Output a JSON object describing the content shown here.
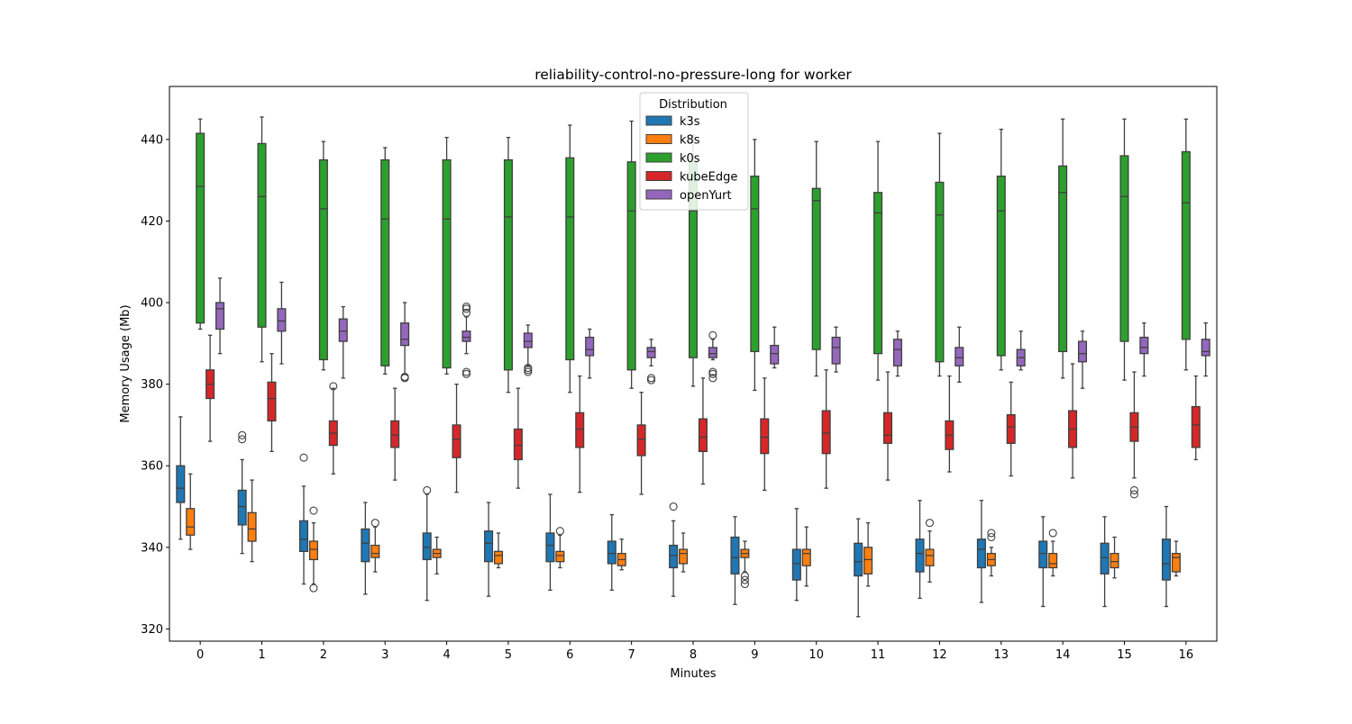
{
  "chart_data": {
    "type": "box",
    "title": "reliability-control-no-pressure-long for worker",
    "xlabel": "Minutes",
    "ylabel": "Memory Usage (Mb)",
    "ylim": [
      317,
      453
    ],
    "yticks": [
      320,
      340,
      360,
      380,
      400,
      420,
      440
    ],
    "grid": false,
    "legend": {
      "title": "Distribution",
      "placement": "top-center"
    },
    "categories": [
      "0",
      "1",
      "2",
      "3",
      "4",
      "5",
      "6",
      "7",
      "8",
      "9",
      "10",
      "11",
      "12",
      "13",
      "14",
      "15",
      "16"
    ],
    "series": [
      {
        "name": "k3s",
        "color": "#1f77b4",
        "boxes": [
          {
            "whislo": 342,
            "q1": 351,
            "med": 354.5,
            "q3": 360,
            "whishi": 372,
            "fliers": []
          },
          {
            "whislo": 338.5,
            "q1": 345.5,
            "med": 350,
            "q3": 354,
            "whishi": 361.5,
            "fliers": [
              366.5,
              367.5
            ]
          },
          {
            "whislo": 331,
            "q1": 339,
            "med": 342,
            "q3": 346.5,
            "whishi": 355,
            "fliers": [
              362
            ]
          },
          {
            "whislo": 328.5,
            "q1": 336.5,
            "med": 341,
            "q3": 344.5,
            "whishi": 351,
            "fliers": []
          },
          {
            "whislo": 327,
            "q1": 337,
            "med": 340,
            "q3": 343.5,
            "whishi": 353,
            "fliers": [
              354
            ]
          },
          {
            "whislo": 328,
            "q1": 336.5,
            "med": 341,
            "q3": 344,
            "whishi": 351,
            "fliers": []
          },
          {
            "whislo": 329.5,
            "q1": 336.5,
            "med": 340.5,
            "q3": 343.5,
            "whishi": 353,
            "fliers": []
          },
          {
            "whislo": 329.5,
            "q1": 336,
            "med": 338.5,
            "q3": 341.5,
            "whishi": 348,
            "fliers": []
          },
          {
            "whislo": 328,
            "q1": 335,
            "med": 338,
            "q3": 340.5,
            "whishi": 346.5,
            "fliers": [
              350
            ]
          },
          {
            "whislo": 326,
            "q1": 333.5,
            "med": 337.5,
            "q3": 342.5,
            "whishi": 347.5,
            "fliers": []
          },
          {
            "whislo": 327,
            "q1": 332,
            "med": 336,
            "q3": 339.5,
            "whishi": 349.5,
            "fliers": []
          },
          {
            "whislo": 323,
            "q1": 333,
            "med": 336.5,
            "q3": 341,
            "whishi": 347,
            "fliers": []
          },
          {
            "whislo": 327.5,
            "q1": 334,
            "med": 338.5,
            "q3": 342,
            "whishi": 351.5,
            "fliers": []
          },
          {
            "whislo": 326.5,
            "q1": 335,
            "med": 339.5,
            "q3": 342,
            "whishi": 351.5,
            "fliers": []
          },
          {
            "whislo": 325.5,
            "q1": 335,
            "med": 338.5,
            "q3": 341.5,
            "whishi": 347.5,
            "fliers": []
          },
          {
            "whislo": 325.5,
            "q1": 333.5,
            "med": 337.5,
            "q3": 341,
            "whishi": 347.5,
            "fliers": []
          },
          {
            "whislo": 325.5,
            "q1": 332,
            "med": 336,
            "q3": 342,
            "whishi": 350,
            "fliers": []
          }
        ]
      },
      {
        "name": "k8s",
        "color": "#ff7f0e",
        "boxes": [
          {
            "whislo": 339.5,
            "q1": 343,
            "med": 345,
            "q3": 349.5,
            "whishi": 358,
            "fliers": []
          },
          {
            "whislo": 336.5,
            "q1": 341.5,
            "med": 344.5,
            "q3": 348.5,
            "whishi": 356.5,
            "fliers": []
          },
          {
            "whislo": 331,
            "q1": 337,
            "med": 339.5,
            "q3": 341.5,
            "whishi": 346,
            "fliers": [
              330,
              349
            ]
          },
          {
            "whislo": 334,
            "q1": 337.5,
            "med": 338.5,
            "q3": 340.5,
            "whishi": 345,
            "fliers": [
              346
            ]
          },
          {
            "whislo": 333.5,
            "q1": 337.5,
            "med": 338.5,
            "q3": 339.5,
            "whishi": 342.5,
            "fliers": []
          },
          {
            "whislo": 335,
            "q1": 336,
            "med": 338,
            "q3": 339,
            "whishi": 343.5,
            "fliers": []
          },
          {
            "whislo": 335,
            "q1": 336.5,
            "med": 338,
            "q3": 339,
            "whishi": 343,
            "fliers": [
              344
            ]
          },
          {
            "whislo": 334.5,
            "q1": 335.5,
            "med": 337,
            "q3": 338.5,
            "whishi": 342,
            "fliers": []
          },
          {
            "whislo": 334,
            "q1": 336,
            "med": 338.5,
            "q3": 339.5,
            "whishi": 343.5,
            "fliers": []
          },
          {
            "whislo": 334,
            "q1": 337.5,
            "med": 338.5,
            "q3": 339.5,
            "whishi": 341.5,
            "fliers": [
              331,
              332,
              333
            ]
          },
          {
            "whislo": 330.5,
            "q1": 335.5,
            "med": 338.5,
            "q3": 339.5,
            "whishi": 345,
            "fliers": []
          },
          {
            "whislo": 330.5,
            "q1": 333.5,
            "med": 337,
            "q3": 340,
            "whishi": 346,
            "fliers": []
          },
          {
            "whislo": 331.5,
            "q1": 335.5,
            "med": 338,
            "q3": 339.5,
            "whishi": 344,
            "fliers": [
              346
            ]
          },
          {
            "whislo": 333,
            "q1": 335.5,
            "med": 337,
            "q3": 338.5,
            "whishi": 340,
            "fliers": [
              342.5,
              343.5
            ]
          },
          {
            "whislo": 333,
            "q1": 335,
            "med": 336,
            "q3": 338.5,
            "whishi": 341.5,
            "fliers": [
              343.5
            ]
          },
          {
            "whislo": 332.5,
            "q1": 335,
            "med": 336.5,
            "q3": 338.5,
            "whishi": 342.5,
            "fliers": []
          },
          {
            "whislo": 333,
            "q1": 334,
            "med": 337.5,
            "q3": 338.5,
            "whishi": 341.5,
            "fliers": []
          }
        ]
      },
      {
        "name": "k0s",
        "color": "#2ca02c",
        "boxes": [
          {
            "whislo": 393.5,
            "q1": 395,
            "med": 428.5,
            "q3": 441.5,
            "whishi": 445,
            "fliers": []
          },
          {
            "whislo": 385.5,
            "q1": 394,
            "med": 426,
            "q3": 439,
            "whishi": 445.5,
            "fliers": []
          },
          {
            "whislo": 383.5,
            "q1": 386,
            "med": 423,
            "q3": 435,
            "whishi": 439.5,
            "fliers": []
          },
          {
            "whislo": 382.5,
            "q1": 384.5,
            "med": 420.5,
            "q3": 435,
            "whishi": 438,
            "fliers": []
          },
          {
            "whislo": 382.5,
            "q1": 384,
            "med": 420.5,
            "q3": 435,
            "whishi": 440.5,
            "fliers": []
          },
          {
            "whislo": 378,
            "q1": 383.5,
            "med": 421,
            "q3": 435,
            "whishi": 440.5,
            "fliers": []
          },
          {
            "whislo": 378,
            "q1": 386,
            "med": 421,
            "q3": 435.5,
            "whishi": 443.5,
            "fliers": []
          },
          {
            "whislo": 379,
            "q1": 383.5,
            "med": 422.5,
            "q3": 434.5,
            "whishi": 444.5,
            "fliers": []
          },
          {
            "whislo": 379.5,
            "q1": 386.5,
            "med": 422.5,
            "q3": 434.5,
            "whishi": 441,
            "fliers": []
          },
          {
            "whislo": 378.5,
            "q1": 388,
            "med": 423,
            "q3": 431,
            "whishi": 440,
            "fliers": []
          },
          {
            "whislo": 382,
            "q1": 388.5,
            "med": 425,
            "q3": 428,
            "whishi": 439.5,
            "fliers": []
          },
          {
            "whislo": 381,
            "q1": 387.5,
            "med": 422,
            "q3": 427,
            "whishi": 439.5,
            "fliers": []
          },
          {
            "whislo": 382,
            "q1": 385.5,
            "med": 421.5,
            "q3": 429.5,
            "whishi": 441.5,
            "fliers": []
          },
          {
            "whislo": 383.5,
            "q1": 387,
            "med": 422.5,
            "q3": 431,
            "whishi": 442.5,
            "fliers": []
          },
          {
            "whislo": 381.5,
            "q1": 388,
            "med": 427,
            "q3": 433.5,
            "whishi": 445,
            "fliers": []
          },
          {
            "whislo": 381,
            "q1": 390.5,
            "med": 426,
            "q3": 436,
            "whishi": 445,
            "fliers": []
          },
          {
            "whislo": 383.5,
            "q1": 391,
            "med": 424.5,
            "q3": 437,
            "whishi": 445,
            "fliers": []
          }
        ]
      },
      {
        "name": "kubeEdge",
        "color": "#d62728",
        "boxes": [
          {
            "whislo": 366,
            "q1": 376.5,
            "med": 380,
            "q3": 383.5,
            "whishi": 392,
            "fliers": []
          },
          {
            "whislo": 363.5,
            "q1": 371,
            "med": 376.5,
            "q3": 380.5,
            "whishi": 387.5,
            "fliers": []
          },
          {
            "whislo": 358,
            "q1": 365,
            "med": 368,
            "q3": 371,
            "whishi": 379,
            "fliers": [
              379.5
            ]
          },
          {
            "whislo": 356.5,
            "q1": 364.5,
            "med": 367.5,
            "q3": 371,
            "whishi": 379,
            "fliers": []
          },
          {
            "whislo": 353.5,
            "q1": 362,
            "med": 366.5,
            "q3": 370,
            "whishi": 380,
            "fliers": []
          },
          {
            "whislo": 354.5,
            "q1": 361.5,
            "med": 365,
            "q3": 369,
            "whishi": 379,
            "fliers": []
          },
          {
            "whislo": 353.5,
            "q1": 364.5,
            "med": 369,
            "q3": 373,
            "whishi": 382,
            "fliers": []
          },
          {
            "whislo": 353,
            "q1": 362.5,
            "med": 366.5,
            "q3": 370,
            "whishi": 378,
            "fliers": []
          },
          {
            "whislo": 355.5,
            "q1": 363.5,
            "med": 367,
            "q3": 371.5,
            "whishi": 381.5,
            "fliers": []
          },
          {
            "whislo": 354,
            "q1": 363,
            "med": 367,
            "q3": 371.5,
            "whishi": 381.5,
            "fliers": []
          },
          {
            "whislo": 354.5,
            "q1": 363,
            "med": 368,
            "q3": 373.5,
            "whishi": 383.5,
            "fliers": []
          },
          {
            "whislo": 356.5,
            "q1": 365.5,
            "med": 367.5,
            "q3": 373,
            "whishi": 383,
            "fliers": []
          },
          {
            "whislo": 358.5,
            "q1": 364,
            "med": 367.5,
            "q3": 371,
            "whishi": 382,
            "fliers": []
          },
          {
            "whislo": 357.5,
            "q1": 365.5,
            "med": 369.5,
            "q3": 372.5,
            "whishi": 380.5,
            "fliers": []
          },
          {
            "whislo": 357,
            "q1": 364.5,
            "med": 369,
            "q3": 373.5,
            "whishi": 385,
            "fliers": []
          },
          {
            "whislo": 357,
            "q1": 366,
            "med": 369.5,
            "q3": 373,
            "whishi": 383,
            "fliers": [
              353,
              354
            ]
          },
          {
            "whislo": 361.5,
            "q1": 364.5,
            "med": 370,
            "q3": 374.5,
            "whishi": 382,
            "fliers": []
          }
        ]
      },
      {
        "name": "openYurt",
        "color": "#9467bd",
        "boxes": [
          {
            "whislo": 387.5,
            "q1": 393.5,
            "med": 398.5,
            "q3": 400,
            "whishi": 406,
            "fliers": []
          },
          {
            "whislo": 385,
            "q1": 393,
            "med": 395.5,
            "q3": 398.5,
            "whishi": 405,
            "fliers": []
          },
          {
            "whislo": 381.5,
            "q1": 390.5,
            "med": 393,
            "q3": 396,
            "whishi": 399,
            "fliers": []
          },
          {
            "whislo": 382.5,
            "q1": 389.5,
            "med": 391,
            "q3": 395,
            "whishi": 400,
            "fliers": [
              381.5,
              381.8
            ]
          },
          {
            "whislo": 387.5,
            "q1": 390.5,
            "med": 391.5,
            "q3": 393,
            "whishi": 396.5,
            "fliers": [
              397.5,
              398.5,
              399,
              382.5,
              383
            ]
          },
          {
            "whislo": 384.5,
            "q1": 389,
            "med": 390.5,
            "q3": 392.5,
            "whishi": 394.5,
            "fliers": [
              383,
              383.5,
              384
            ]
          },
          {
            "whislo": 381.5,
            "q1": 387,
            "med": 388.5,
            "q3": 391.5,
            "whishi": 393.5,
            "fliers": []
          },
          {
            "whislo": 384.5,
            "q1": 386.5,
            "med": 388,
            "q3": 389,
            "whishi": 391,
            "fliers": [
              381,
              381.5
            ]
          },
          {
            "whislo": 386,
            "q1": 386.5,
            "med": 387.5,
            "q3": 389,
            "whishi": 391,
            "fliers": [
              392,
              381.5,
              382.5,
              383
            ]
          },
          {
            "whislo": 384,
            "q1": 385,
            "med": 387.5,
            "q3": 389.5,
            "whishi": 394,
            "fliers": []
          },
          {
            "whislo": 383,
            "q1": 385,
            "med": 389,
            "q3": 391.5,
            "whishi": 394,
            "fliers": []
          },
          {
            "whislo": 382,
            "q1": 384.5,
            "med": 388.5,
            "q3": 391,
            "whishi": 393,
            "fliers": []
          },
          {
            "whislo": 380.5,
            "q1": 384.5,
            "med": 386.5,
            "q3": 389,
            "whishi": 394,
            "fliers": []
          },
          {
            "whislo": 383.5,
            "q1": 384.5,
            "med": 386.5,
            "q3": 388.5,
            "whishi": 393,
            "fliers": []
          },
          {
            "whislo": 379,
            "q1": 385.5,
            "med": 387.5,
            "q3": 390.5,
            "whishi": 393,
            "fliers": []
          },
          {
            "whislo": 382,
            "q1": 387.5,
            "med": 389,
            "q3": 391.5,
            "whishi": 395,
            "fliers": []
          },
          {
            "whislo": 382,
            "q1": 387,
            "med": 388,
            "q3": 391,
            "whishi": 395,
            "fliers": []
          }
        ]
      }
    ]
  }
}
